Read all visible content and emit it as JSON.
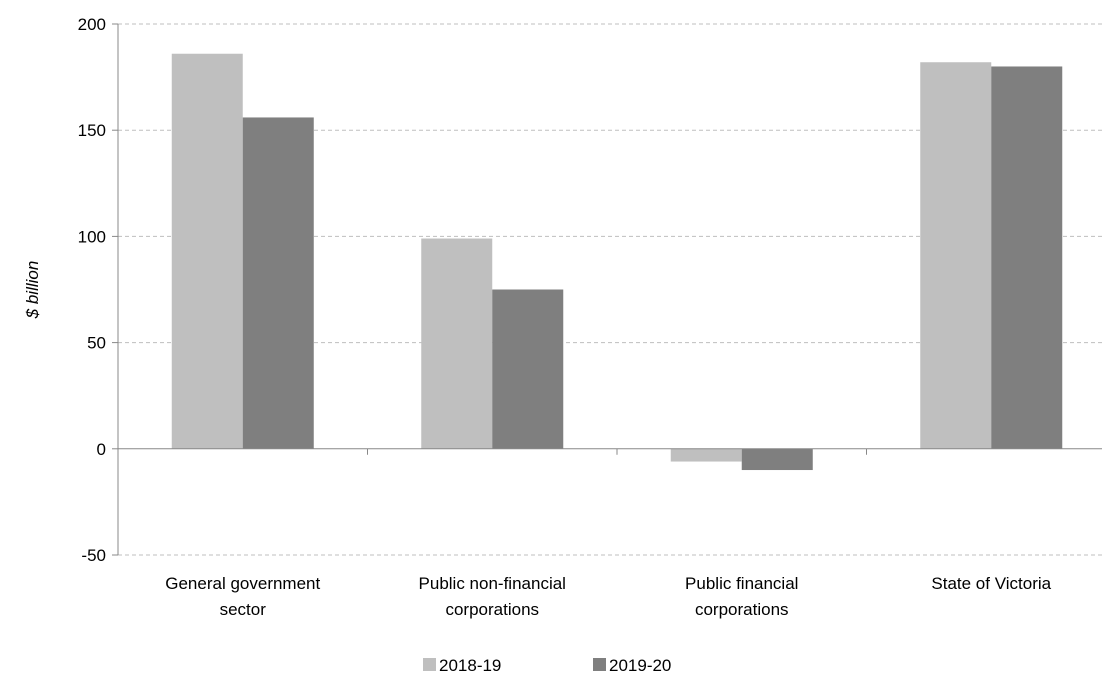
{
  "chart_data": {
    "type": "bar",
    "categories": [
      [
        "General government",
        "sector"
      ],
      [
        "Public non-financial",
        "corporations"
      ],
      [
        "Public financial",
        "corporations"
      ],
      [
        "State of Victoria"
      ]
    ],
    "series": [
      {
        "name": "2018-19",
        "values": [
          186,
          99,
          -6,
          182
        ],
        "color": "#bfbfbf"
      },
      {
        "name": "2019-20",
        "values": [
          156,
          75,
          -10,
          180
        ],
        "color": "#7f7f7f"
      }
    ],
    "ylabel": "$ billion",
    "ylim": [
      -50,
      200
    ],
    "yticks": [
      200,
      150,
      100,
      50,
      0,
      -50
    ],
    "grid": true,
    "legend": "bottom-center"
  }
}
